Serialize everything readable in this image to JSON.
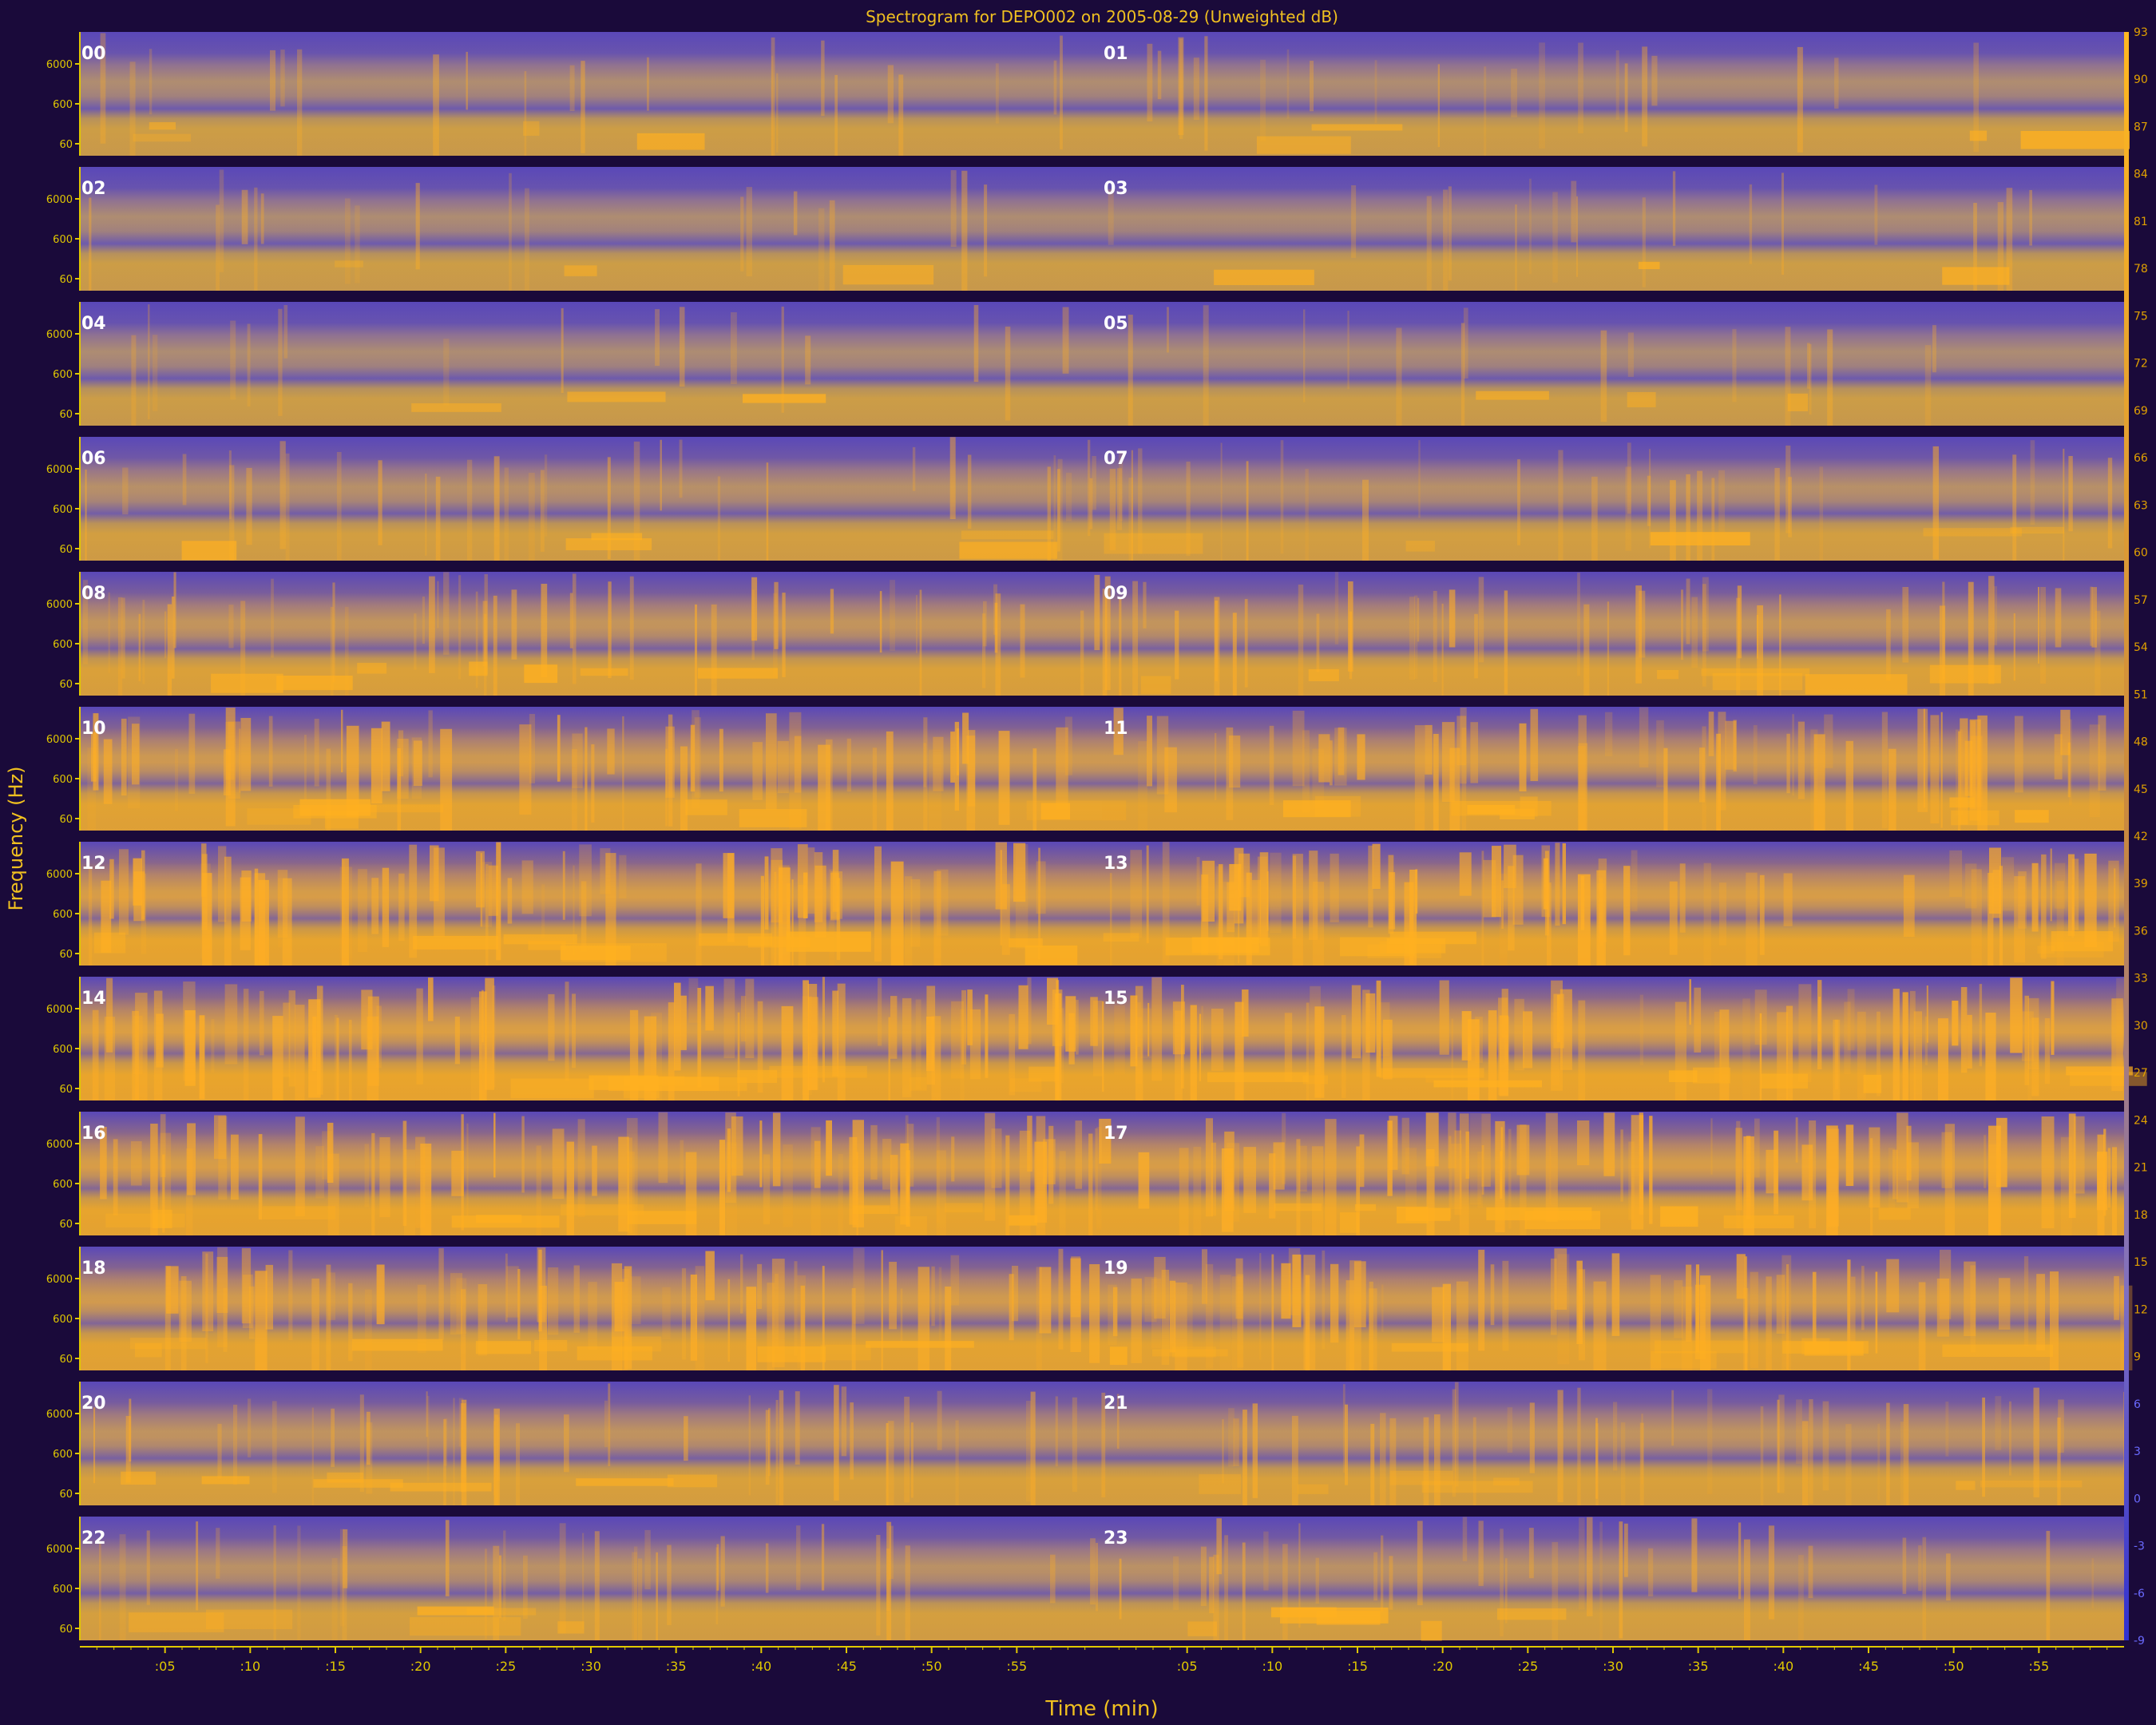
{
  "colors": {
    "background": "#1a0a3a",
    "spectrogram_low": "#5a46b8",
    "spectrogram_high": "#ffa81a",
    "axis_label": "#f0c020",
    "tick_label": "#e0c800",
    "panel_label": "#ffffff",
    "colorbar_warm": "#e0a000",
    "colorbar_cool": "#6a6aff"
  },
  "chart_data": {
    "type": "heatmap",
    "title": "Spectrogram for DEPO002 on 2005-08-29 (Unweighted dB)",
    "xlabel": "Time (min)",
    "ylabel": "Frequency (Hz)",
    "panel_labels": [
      "00",
      "01",
      "02",
      "03",
      "04",
      "05",
      "06",
      "07",
      "08",
      "09",
      "10",
      "11",
      "12",
      "13",
      "14",
      "15",
      "16",
      "17",
      "18",
      "19",
      "20",
      "21",
      "22",
      "23"
    ],
    "y_ticks": [
      "6000",
      "600",
      "60"
    ],
    "x_ticks_left": [
      ":05",
      ":10",
      ":15",
      ":20",
      ":25",
      ":30",
      ":35",
      ":40",
      ":45",
      ":50",
      ":55"
    ],
    "x_ticks_right": [
      ":05",
      ":10",
      ":15",
      ":20",
      ":25",
      ":30",
      ":35",
      ":40",
      ":45",
      ":50",
      ":55"
    ],
    "x_tick_values": [
      5,
      10,
      15,
      20,
      25,
      30,
      35,
      40,
      45,
      50,
      55
    ],
    "x_range_minutes": [
      0,
      60
    ],
    "colorbar_ticks": [
      "93",
      "90",
      "87",
      "84",
      "81",
      "78",
      "75",
      "72",
      "69",
      "66",
      "63",
      "60",
      "57",
      "54",
      "51",
      "48",
      "45",
      "42",
      "39",
      "36",
      "33",
      "30",
      "27",
      "24",
      "21",
      "18",
      "15",
      "12",
      "9",
      "6",
      "3",
      "0",
      "-3",
      "-6",
      "-9"
    ],
    "colorbar_range_db": [
      -9,
      93
    ],
    "hour_activity": [
      0.15,
      0.15,
      0.12,
      0.12,
      0.1,
      0.1,
      0.3,
      0.3,
      0.5,
      0.5,
      0.7,
      0.7,
      0.85,
      0.85,
      0.9,
      0.9,
      0.85,
      0.85,
      0.75,
      0.75,
      0.45,
      0.45,
      0.35,
      0.35
    ]
  }
}
